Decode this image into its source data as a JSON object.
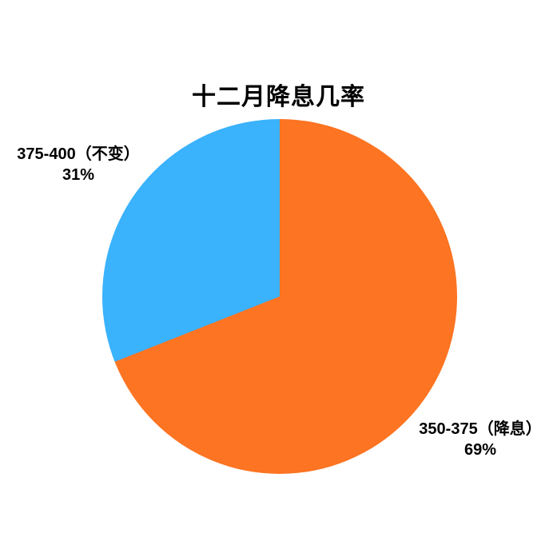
{
  "chart_data": {
    "type": "pie",
    "title": "十二月降息几率",
    "direction": "clockwise",
    "start_angle_deg": 0,
    "legend_position": "none",
    "background_color": "#ffffff",
    "text_color": "#000000",
    "slices": [
      {
        "label": "350-375（降息）",
        "value": 69,
        "percent_label": "69%",
        "color": "#fd7422",
        "label_position": "bottom-right"
      },
      {
        "label": "375-400（不变）",
        "value": 31,
        "percent_label": "31%",
        "color": "#3ab2fc",
        "label_position": "top-left"
      }
    ]
  }
}
